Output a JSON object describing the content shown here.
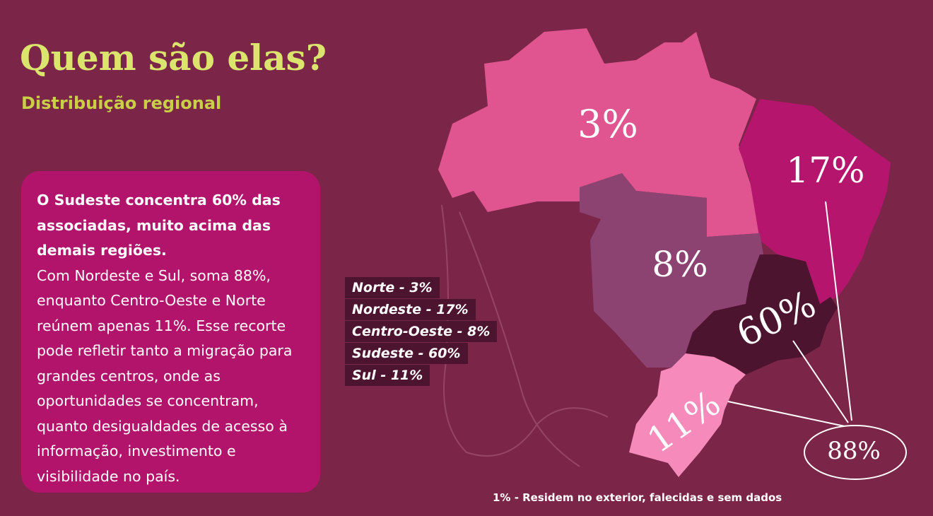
{
  "header": {
    "title": "Quem são elas?",
    "subtitle": "Distribuição regional"
  },
  "text_box": {
    "lead": "O Sudeste concentra 60% das associadas, muito acima das demais regiões.",
    "body": "Com Nordeste e Sul, soma 88%, enquanto Centro-Oeste e Norte reúnem apenas 11%. Esse recorte pode refletir tanto a migração para grandes centros, onde as oportunidades se concentram, quanto desigualdades de acesso à informação, investimento e visibilidade no país."
  },
  "legend": [
    "Norte - 3%",
    "Nordeste - 17%",
    "Centro-Oeste - 8%",
    "Sudeste - 60%",
    "Sul - 11%"
  ],
  "map": {
    "regions": [
      {
        "label": "3%",
        "color": "#e0558f"
      },
      {
        "label": "17%",
        "color": "#b5156d"
      },
      {
        "label": "8%",
        "color": "#8c4372"
      },
      {
        "label": "60%",
        "color": "#4d1430"
      },
      {
        "label": "11%",
        "color": "#f68bbb"
      }
    ],
    "total_label": "88%"
  },
  "footnote": "1% - Residem no exterior, falecidas e sem dados"
}
